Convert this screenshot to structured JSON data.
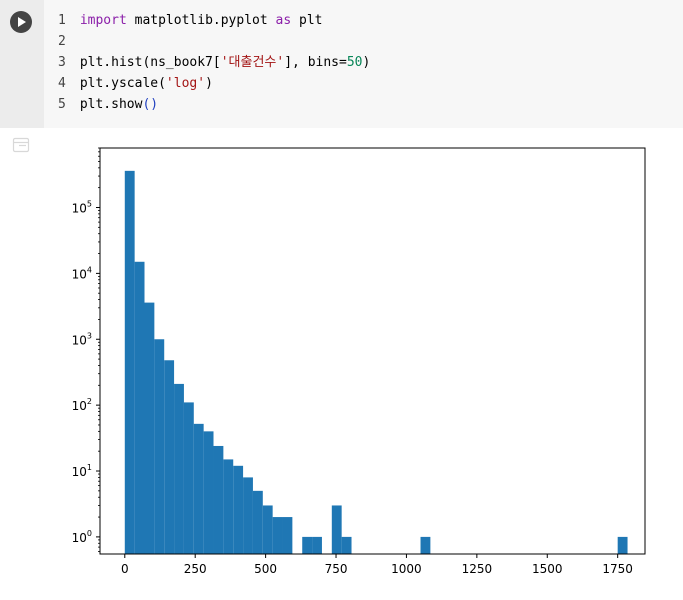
{
  "code_cell": {
    "lines": [
      {
        "num": "1",
        "segments": [
          {
            "text": "import",
            "style": "kw"
          },
          {
            "text": " matplotlib.pyplot ",
            "style": "plain"
          },
          {
            "text": "as",
            "style": "kw"
          },
          {
            "text": " plt",
            "style": "plain"
          }
        ]
      },
      {
        "num": "2",
        "segments": []
      },
      {
        "num": "3",
        "segments": [
          {
            "text": "plt.hist(ns_book7[",
            "style": "plain"
          },
          {
            "text": "'대출건수'",
            "style": "str"
          },
          {
            "text": "], bins=",
            "style": "plain"
          },
          {
            "text": "50",
            "style": "num"
          },
          {
            "text": ")",
            "style": "plain"
          }
        ]
      },
      {
        "num": "4",
        "segments": [
          {
            "text": "plt.yscale(",
            "style": "plain"
          },
          {
            "text": "'log'",
            "style": "str"
          },
          {
            "text": ")",
            "style": "plain"
          }
        ]
      },
      {
        "num": "5",
        "segments": [
          {
            "text": "plt.show",
            "style": "plain"
          },
          {
            "text": "()",
            "style": "br"
          }
        ]
      }
    ]
  },
  "colors": {
    "bar": "#1f77b4",
    "cell_bg": "#f7f7f7",
    "gutter_bg": "#ececec",
    "run_button": "#444444"
  },
  "icons": {
    "run": "play-circle-icon",
    "output": "output-toggle-icon"
  },
  "chart_data": {
    "type": "bar",
    "title": "",
    "xlabel": "",
    "ylabel": "",
    "yscale": "log",
    "grid": false,
    "xlim": [
      -88,
      1847
    ],
    "ylim": [
      0.55,
      800000
    ],
    "bin_width": 35,
    "x_ticks": [
      0,
      250,
      500,
      750,
      1000,
      1250,
      1500,
      1750
    ],
    "x_tick_labels": [
      "0",
      "250",
      "500",
      "750",
      "1000",
      "1250",
      "1500",
      "1750"
    ],
    "y_ticks": [
      1,
      10,
      100,
      1000,
      10000,
      100000
    ],
    "y_tick_labels": [
      {
        "base": "10",
        "exp": "0"
      },
      {
        "base": "10",
        "exp": "1"
      },
      {
        "base": "10",
        "exp": "2"
      },
      {
        "base": "10",
        "exp": "3"
      },
      {
        "base": "10",
        "exp": "4"
      },
      {
        "base": "10",
        "exp": "5"
      }
    ],
    "bins": [
      {
        "x": 0,
        "count": 360000
      },
      {
        "x": 35,
        "count": 15000
      },
      {
        "x": 70,
        "count": 3600
      },
      {
        "x": 105,
        "count": 1000
      },
      {
        "x": 140,
        "count": 480
      },
      {
        "x": 175,
        "count": 210
      },
      {
        "x": 210,
        "count": 110
      },
      {
        "x": 245,
        "count": 52
      },
      {
        "x": 280,
        "count": 40
      },
      {
        "x": 315,
        "count": 24
      },
      {
        "x": 350,
        "count": 15
      },
      {
        "x": 385,
        "count": 12
      },
      {
        "x": 420,
        "count": 8
      },
      {
        "x": 455,
        "count": 5
      },
      {
        "x": 490,
        "count": 3
      },
      {
        "x": 525,
        "count": 2
      },
      {
        "x": 560,
        "count": 2
      },
      {
        "x": 630,
        "count": 1
      },
      {
        "x": 665,
        "count": 1
      },
      {
        "x": 735,
        "count": 3
      },
      {
        "x": 770,
        "count": 1
      },
      {
        "x": 1050,
        "count": 1
      },
      {
        "x": 1750,
        "count": 1
      }
    ]
  }
}
